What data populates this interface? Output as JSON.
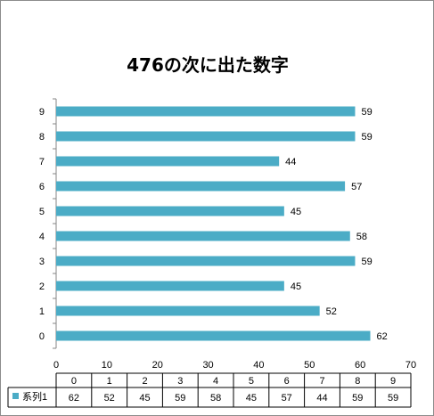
{
  "chart_data": {
    "type": "bar",
    "orientation": "horizontal",
    "title": "476の次に出た数字",
    "categories": [
      "0",
      "1",
      "2",
      "3",
      "4",
      "5",
      "6",
      "7",
      "8",
      "9"
    ],
    "series": [
      {
        "name": "系列1",
        "values": [
          62,
          52,
          45,
          59,
          58,
          45,
          57,
          44,
          59,
          59
        ],
        "color": "#4bacc6"
      }
    ],
    "xlim": [
      0,
      70
    ],
    "x_ticks": [
      0,
      10,
      20,
      30,
      40,
      50,
      60,
      70
    ],
    "grid": false,
    "data_labels": true,
    "legend": "data-table-bottom"
  }
}
